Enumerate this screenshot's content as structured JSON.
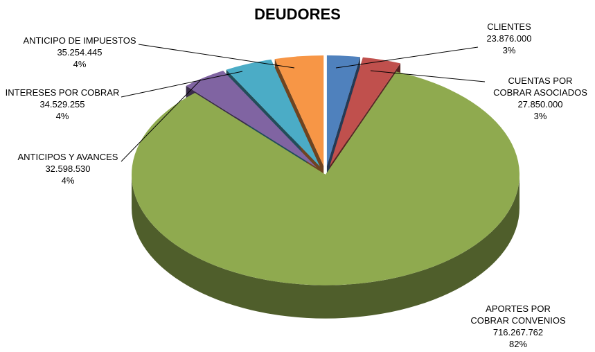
{
  "chart_data": {
    "type": "pie",
    "title": "DEUDORES",
    "categories": [
      "CLIENTES",
      "CUENTAS POR COBRAR ASOCIADOS",
      "APORTES POR COBRAR CONVENIOS",
      "ANTICIPOS Y AVANCES",
      "INTERESES POR COBRAR",
      "ANTICIPO DE IMPUESTOS"
    ],
    "values": [
      23876000,
      27850000,
      716267762,
      32598530,
      34529255,
      35254445
    ],
    "value_labels": [
      "23.876.000",
      "27.850.000",
      "716.267.762",
      "32.598.530",
      "34.529.255",
      "35.254.445"
    ],
    "percent_labels": [
      "3%",
      "3%",
      "82%",
      "4%",
      "4%",
      "4%"
    ],
    "colors": [
      "#4f81bd",
      "#c0504d",
      "#8faa4f",
      "#8064a2",
      "#4bacc6",
      "#f79646"
    ]
  }
}
